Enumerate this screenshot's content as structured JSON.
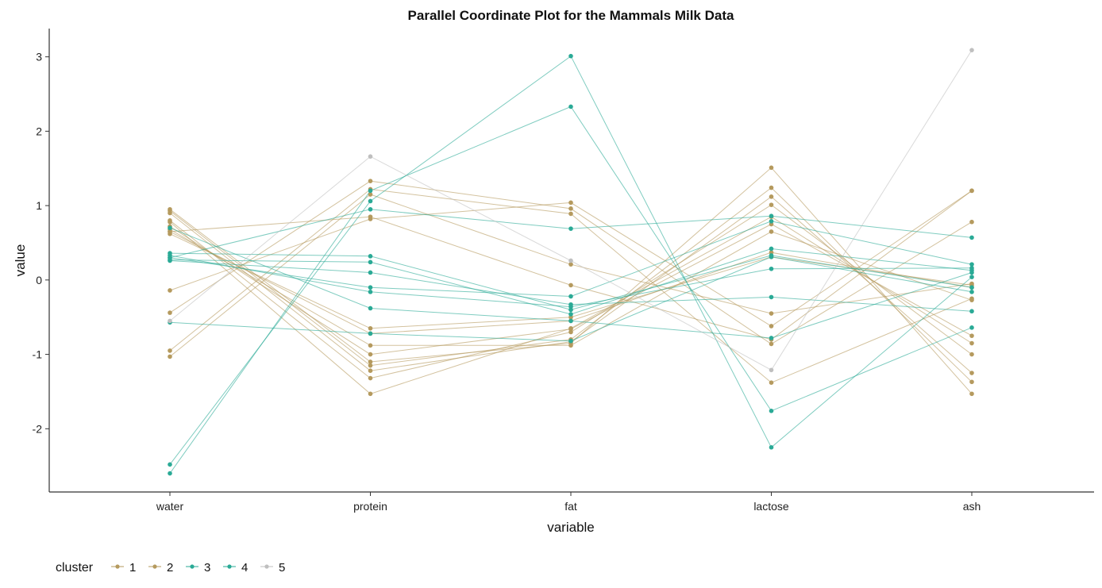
{
  "chart_data": {
    "type": "line",
    "title": "Parallel Coordinate Plot for the Mammals Milk Data",
    "xlabel": "variable",
    "ylabel": "value",
    "categories": [
      "water",
      "protein",
      "fat",
      "lactose",
      "ash"
    ],
    "ylim": [
      -2.85,
      3.38
    ],
    "yticks": [
      3,
      2,
      1,
      0,
      -1,
      -2
    ],
    "ytick_labels": [
      "3",
      "2",
      "1",
      "0",
      "-1",
      "-2"
    ],
    "grid": false,
    "legend": {
      "title": "cluster",
      "position": "bottom-left",
      "entries": [
        {
          "label": "1",
          "color": "#B59A5E"
        },
        {
          "label": "2",
          "color": "#B59A5E"
        },
        {
          "label": "3",
          "color": "#2AAA96"
        },
        {
          "label": "4",
          "color": "#2AAA96"
        },
        {
          "label": "5",
          "color": "#BFBFBF"
        }
      ]
    },
    "series": [
      {
        "cluster": "1",
        "values": [
          0.95,
          -1.1,
          -0.85,
          1.51,
          -1.53
        ]
      },
      {
        "cluster": "1",
        "values": [
          0.93,
          -1.15,
          -0.8,
          1.24,
          -1.37
        ]
      },
      {
        "cluster": "1",
        "values": [
          0.9,
          -1.22,
          -0.83,
          1.12,
          -1.25
        ]
      },
      {
        "cluster": "1",
        "values": [
          0.8,
          -1.32,
          -0.7,
          1.01,
          -1.0
        ]
      },
      {
        "cluster": "1",
        "values": [
          0.78,
          -1.53,
          -0.65,
          0.85,
          -0.85
        ]
      },
      {
        "cluster": "1",
        "values": [
          0.72,
          -1.0,
          -0.66,
          0.75,
          -0.75
        ]
      },
      {
        "cluster": "1",
        "values": [
          0.68,
          -0.88,
          -0.88,
          0.65,
          -0.27
        ]
      },
      {
        "cluster": "1",
        "values": [
          0.65,
          -0.72,
          -0.55,
          0.37,
          -0.1
        ]
      },
      {
        "cluster": "1",
        "values": [
          0.62,
          -0.65,
          -0.5,
          0.31,
          -0.07
        ]
      },
      {
        "cluster": "2",
        "values": [
          -0.14,
          0.82,
          1.04,
          -0.62,
          1.2
        ]
      },
      {
        "cluster": "2",
        "values": [
          -0.44,
          1.33,
          0.96,
          -0.86,
          0.78
        ]
      },
      {
        "cluster": "2",
        "values": [
          -0.95,
          1.22,
          0.89,
          -1.38,
          -0.25
        ]
      },
      {
        "cluster": "2",
        "values": [
          -1.03,
          1.15,
          0.21,
          -0.45,
          -0.05
        ]
      },
      {
        "cluster": "2",
        "values": [
          0.65,
          0.85,
          -0.07,
          -0.8,
          1.2
        ]
      },
      {
        "cluster": "3",
        "values": [
          0.3,
          -0.1,
          -0.22,
          0.79,
          0.21
        ]
      },
      {
        "cluster": "3",
        "values": [
          0.33,
          -0.16,
          -0.36,
          0.15,
          0.16
        ]
      },
      {
        "cluster": "3",
        "values": [
          0.27,
          0.24,
          -0.46,
          0.42,
          0.13
        ]
      },
      {
        "cluster": "3",
        "values": [
          0.36,
          0.32,
          -0.4,
          0.33,
          -0.1
        ]
      },
      {
        "cluster": "3",
        "values": [
          -0.57,
          -0.72,
          -0.82,
          0.31,
          -0.16
        ]
      },
      {
        "cluster": "4",
        "values": [
          0.3,
          0.95,
          0.69,
          0.86,
          0.57
        ]
      },
      {
        "cluster": "4",
        "values": [
          0.26,
          0.1,
          -0.33,
          -0.23,
          -0.42
        ]
      },
      {
        "cluster": "4",
        "values": [
          -2.48,
          1.06,
          3.01,
          -2.25,
          0.04
        ]
      },
      {
        "cluster": "4",
        "values": [
          -2.6,
          1.2,
          2.33,
          -1.76,
          -0.64
        ]
      },
      {
        "cluster": "4",
        "values": [
          0.7,
          -0.38,
          -0.55,
          -0.78,
          0.1
        ]
      },
      {
        "cluster": "5",
        "values": [
          -0.55,
          1.66,
          0.26,
          -1.21,
          3.09
        ]
      }
    ]
  }
}
